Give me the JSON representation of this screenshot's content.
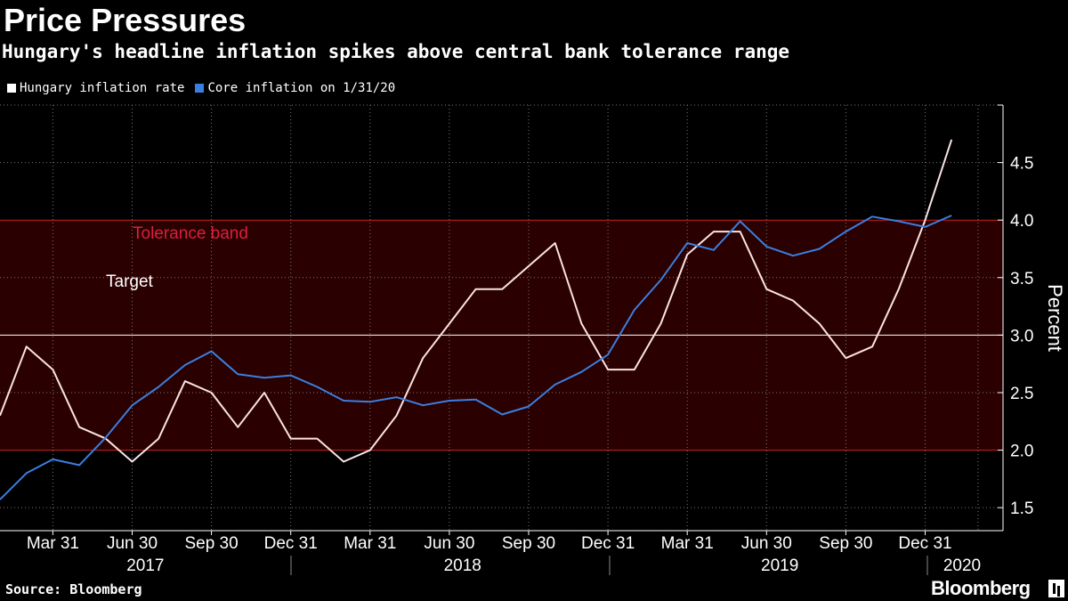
{
  "header": {
    "title": "Price Pressures",
    "subtitle": "Hungary's headline inflation spikes above central bank tolerance range"
  },
  "legend": [
    {
      "label": "Hungary inflation rate",
      "color": "#ffffff"
    },
    {
      "label": "Core inflation on 1/31/20",
      "color": "#3a7fe0"
    }
  ],
  "footer": {
    "source": "Source: Bloomberg",
    "brand": "Bloomberg"
  },
  "chart_data": {
    "type": "line",
    "ylabel": "Percent",
    "ylim": [
      1.3,
      5.0
    ],
    "y_ticks": [
      1.5,
      2.0,
      2.5,
      3.0,
      3.5,
      4.0,
      4.5
    ],
    "y_tick_labels": [
      "1.5",
      "2.0",
      "2.5",
      "3.0",
      "3.5",
      "4.0",
      "4.5"
    ],
    "x_tick_labels": [
      "Mar 31",
      "Jun 30",
      "Sep 30",
      "Dec 31",
      "Mar 31",
      "Jun 30",
      "Sep 30",
      "Dec 31",
      "Mar 31",
      "Jun 30",
      "Sep 30",
      "Dec 31"
    ],
    "x_tick_months": [
      "2017-03",
      "2017-06",
      "2017-09",
      "2017-12",
      "2018-03",
      "2018-06",
      "2018-09",
      "2018-12",
      "2019-03",
      "2019-06",
      "2019-09",
      "2019-12"
    ],
    "years": [
      {
        "label": "2017",
        "from": "2017-01",
        "to": "2017-12"
      },
      {
        "label": "2018",
        "from": "2018-01",
        "to": "2018-12"
      },
      {
        "label": "2019",
        "from": "2019-01",
        "to": "2019-12"
      },
      {
        "label": "2020",
        "from": "2020-01",
        "to": "2020-01"
      }
    ],
    "x": [
      "2017-01",
      "2017-02",
      "2017-03",
      "2017-04",
      "2017-05",
      "2017-06",
      "2017-07",
      "2017-08",
      "2017-09",
      "2017-10",
      "2017-11",
      "2017-12",
      "2018-01",
      "2018-02",
      "2018-03",
      "2018-04",
      "2018-05",
      "2018-06",
      "2018-07",
      "2018-08",
      "2018-09",
      "2018-10",
      "2018-11",
      "2018-12",
      "2019-01",
      "2019-02",
      "2019-03",
      "2019-04",
      "2019-05",
      "2019-06",
      "2019-07",
      "2019-08",
      "2019-09",
      "2019-10",
      "2019-11",
      "2019-12",
      "2020-01"
    ],
    "series": [
      {
        "name": "Hungary inflation rate",
        "color": "#fbe3e3",
        "values": [
          2.3,
          2.9,
          2.7,
          2.2,
          2.1,
          1.9,
          2.1,
          2.6,
          2.5,
          2.2,
          2.5,
          2.1,
          2.1,
          1.9,
          2.0,
          2.3,
          2.8,
          3.1,
          3.4,
          3.4,
          3.6,
          3.8,
          3.1,
          2.7,
          2.7,
          3.1,
          3.7,
          3.9,
          3.9,
          3.4,
          3.3,
          3.1,
          2.8,
          2.9,
          3.4,
          4.0,
          4.7
        ]
      },
      {
        "name": "Core inflation on 1/31/20",
        "color": "#3a7fe0",
        "values": [
          1.57,
          1.8,
          1.92,
          1.87,
          2.11,
          2.39,
          2.55,
          2.74,
          2.86,
          2.66,
          2.63,
          2.65,
          2.55,
          2.43,
          2.42,
          2.46,
          2.39,
          2.43,
          2.44,
          2.31,
          2.38,
          2.57,
          2.68,
          2.83,
          3.22,
          3.48,
          3.8,
          3.74,
          3.99,
          3.77,
          3.69,
          3.75,
          3.9,
          4.03,
          3.99,
          3.94,
          4.04
        ]
      }
    ],
    "bands": [
      {
        "label": "Tolerance band",
        "from": 2.0,
        "to": 4.0,
        "fill": "#2b0000",
        "edge_color": "#cc2222",
        "label_color": "#d9203f"
      }
    ],
    "reference_lines": [
      {
        "label": "Target",
        "y": 3.0,
        "color": "#ffffff"
      }
    ],
    "grid": true,
    "legend_position": "top-left"
  }
}
